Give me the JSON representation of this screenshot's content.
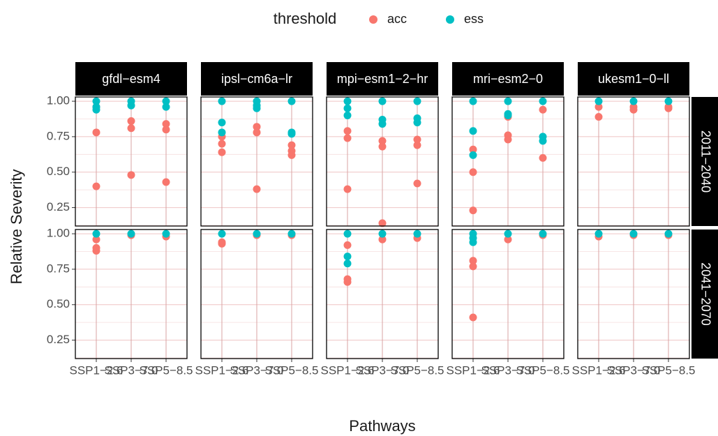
{
  "chart_data": {
    "type": "scatter",
    "legend_title": "threshold",
    "series": [
      {
        "name": "acc",
        "color": "#F8766D"
      },
      {
        "name": "ess",
        "color": "#00BFC4"
      }
    ],
    "xlabel": "Pathways",
    "ylabel": "Relative Severity",
    "categories": [
      "SSP1−2.6",
      "SSP3−7.0",
      "SSP5−8.5"
    ],
    "columns": [
      "gfdl−esm4",
      "ipsl−cm6a−lr",
      "mpi−esm1−2−hr",
      "mri−esm2−0",
      "ukesm1−0−ll"
    ],
    "rows": [
      "2011−2040",
      "2041−2070"
    ],
    "ylim": [
      0.12,
      1.03
    ],
    "yticks": [
      {
        "value": 0.25,
        "label": "0.25"
      },
      {
        "value": 0.5,
        "label": "0.50"
      },
      {
        "value": 0.75,
        "label": "0.75"
      },
      {
        "value": 1,
        "label": "1.00"
      }
    ],
    "grid": true,
    "panels": [
      [
        [
          [
            [
              0.96,
              0.78,
              0.4
            ],
            [
              0.86,
              0.81,
              0.48
            ],
            [
              0.84,
              0.8,
              0.43
            ]
          ],
          [
            [
              1.0,
              0.96,
              0.94
            ],
            [
              1.0,
              0.97
            ],
            [
              1.0,
              0.96
            ]
          ]
        ],
        [
          [
            [
              0.75,
              0.7,
              0.64
            ],
            [
              0.82,
              0.78,
              0.38
            ],
            [
              0.69,
              0.65,
              0.62
            ]
          ],
          [
            [
              1.0,
              0.85,
              0.78
            ],
            [
              1.0,
              0.97,
              0.95
            ],
            [
              1.0,
              0.78,
              0.77
            ]
          ]
        ],
        [
          [
            [
              0.79,
              0.74,
              0.38
            ],
            [
              0.72,
              0.68,
              0.14
            ],
            [
              0.73,
              0.69,
              0.42
            ]
          ],
          [
            [
              1.0,
              0.95,
              0.9
            ],
            [
              1.0,
              0.87,
              0.84
            ],
            [
              1.0,
              0.88,
              0.85
            ]
          ]
        ],
        [
          [
            [
              0.66,
              0.5,
              0.23
            ],
            [
              0.89,
              0.76,
              0.73
            ],
            [
              0.94,
              0.6
            ]
          ],
          [
            [
              1.0,
              0.79,
              0.62
            ],
            [
              1.0,
              0.91,
              0.9
            ],
            [
              1.0,
              0.75,
              0.72
            ]
          ]
        ],
        [
          [
            [
              0.96,
              0.89
            ],
            [
              0.96,
              0.94
            ],
            [
              0.96,
              0.95
            ]
          ],
          [
            [
              1.0
            ],
            [
              1.0
            ],
            [
              1.0
            ]
          ]
        ]
      ],
      [
        [
          [
            [
              0.96,
              0.9,
              0.88
            ],
            [
              0.99
            ],
            [
              0.98
            ]
          ],
          [
            [
              1.0
            ],
            [
              1.0
            ],
            [
              1.0
            ]
          ]
        ],
        [
          [
            [
              0.94,
              0.93
            ],
            [
              0.99
            ],
            [
              0.99
            ]
          ],
          [
            [
              1.0
            ],
            [
              1.0
            ],
            [
              1.0
            ]
          ]
        ],
        [
          [
            [
              0.92,
              0.68,
              0.66
            ],
            [
              0.96
            ],
            [
              0.97
            ]
          ],
          [
            [
              1.0,
              0.84,
              0.79
            ],
            [
              1.0
            ],
            [
              1.0
            ]
          ]
        ],
        [
          [
            [
              0.81,
              0.77,
              0.41
            ],
            [
              0.96
            ],
            [
              0.99
            ]
          ],
          [
            [
              1.0,
              0.97,
              0.94
            ],
            [
              1.0
            ],
            [
              1.0
            ]
          ]
        ],
        [
          [
            [
              0.98
            ],
            [
              0.99
            ],
            [
              0.99
            ]
          ],
          [
            [
              1.0
            ],
            [
              1.0
            ],
            [
              1.0
            ]
          ]
        ]
      ]
    ]
  }
}
